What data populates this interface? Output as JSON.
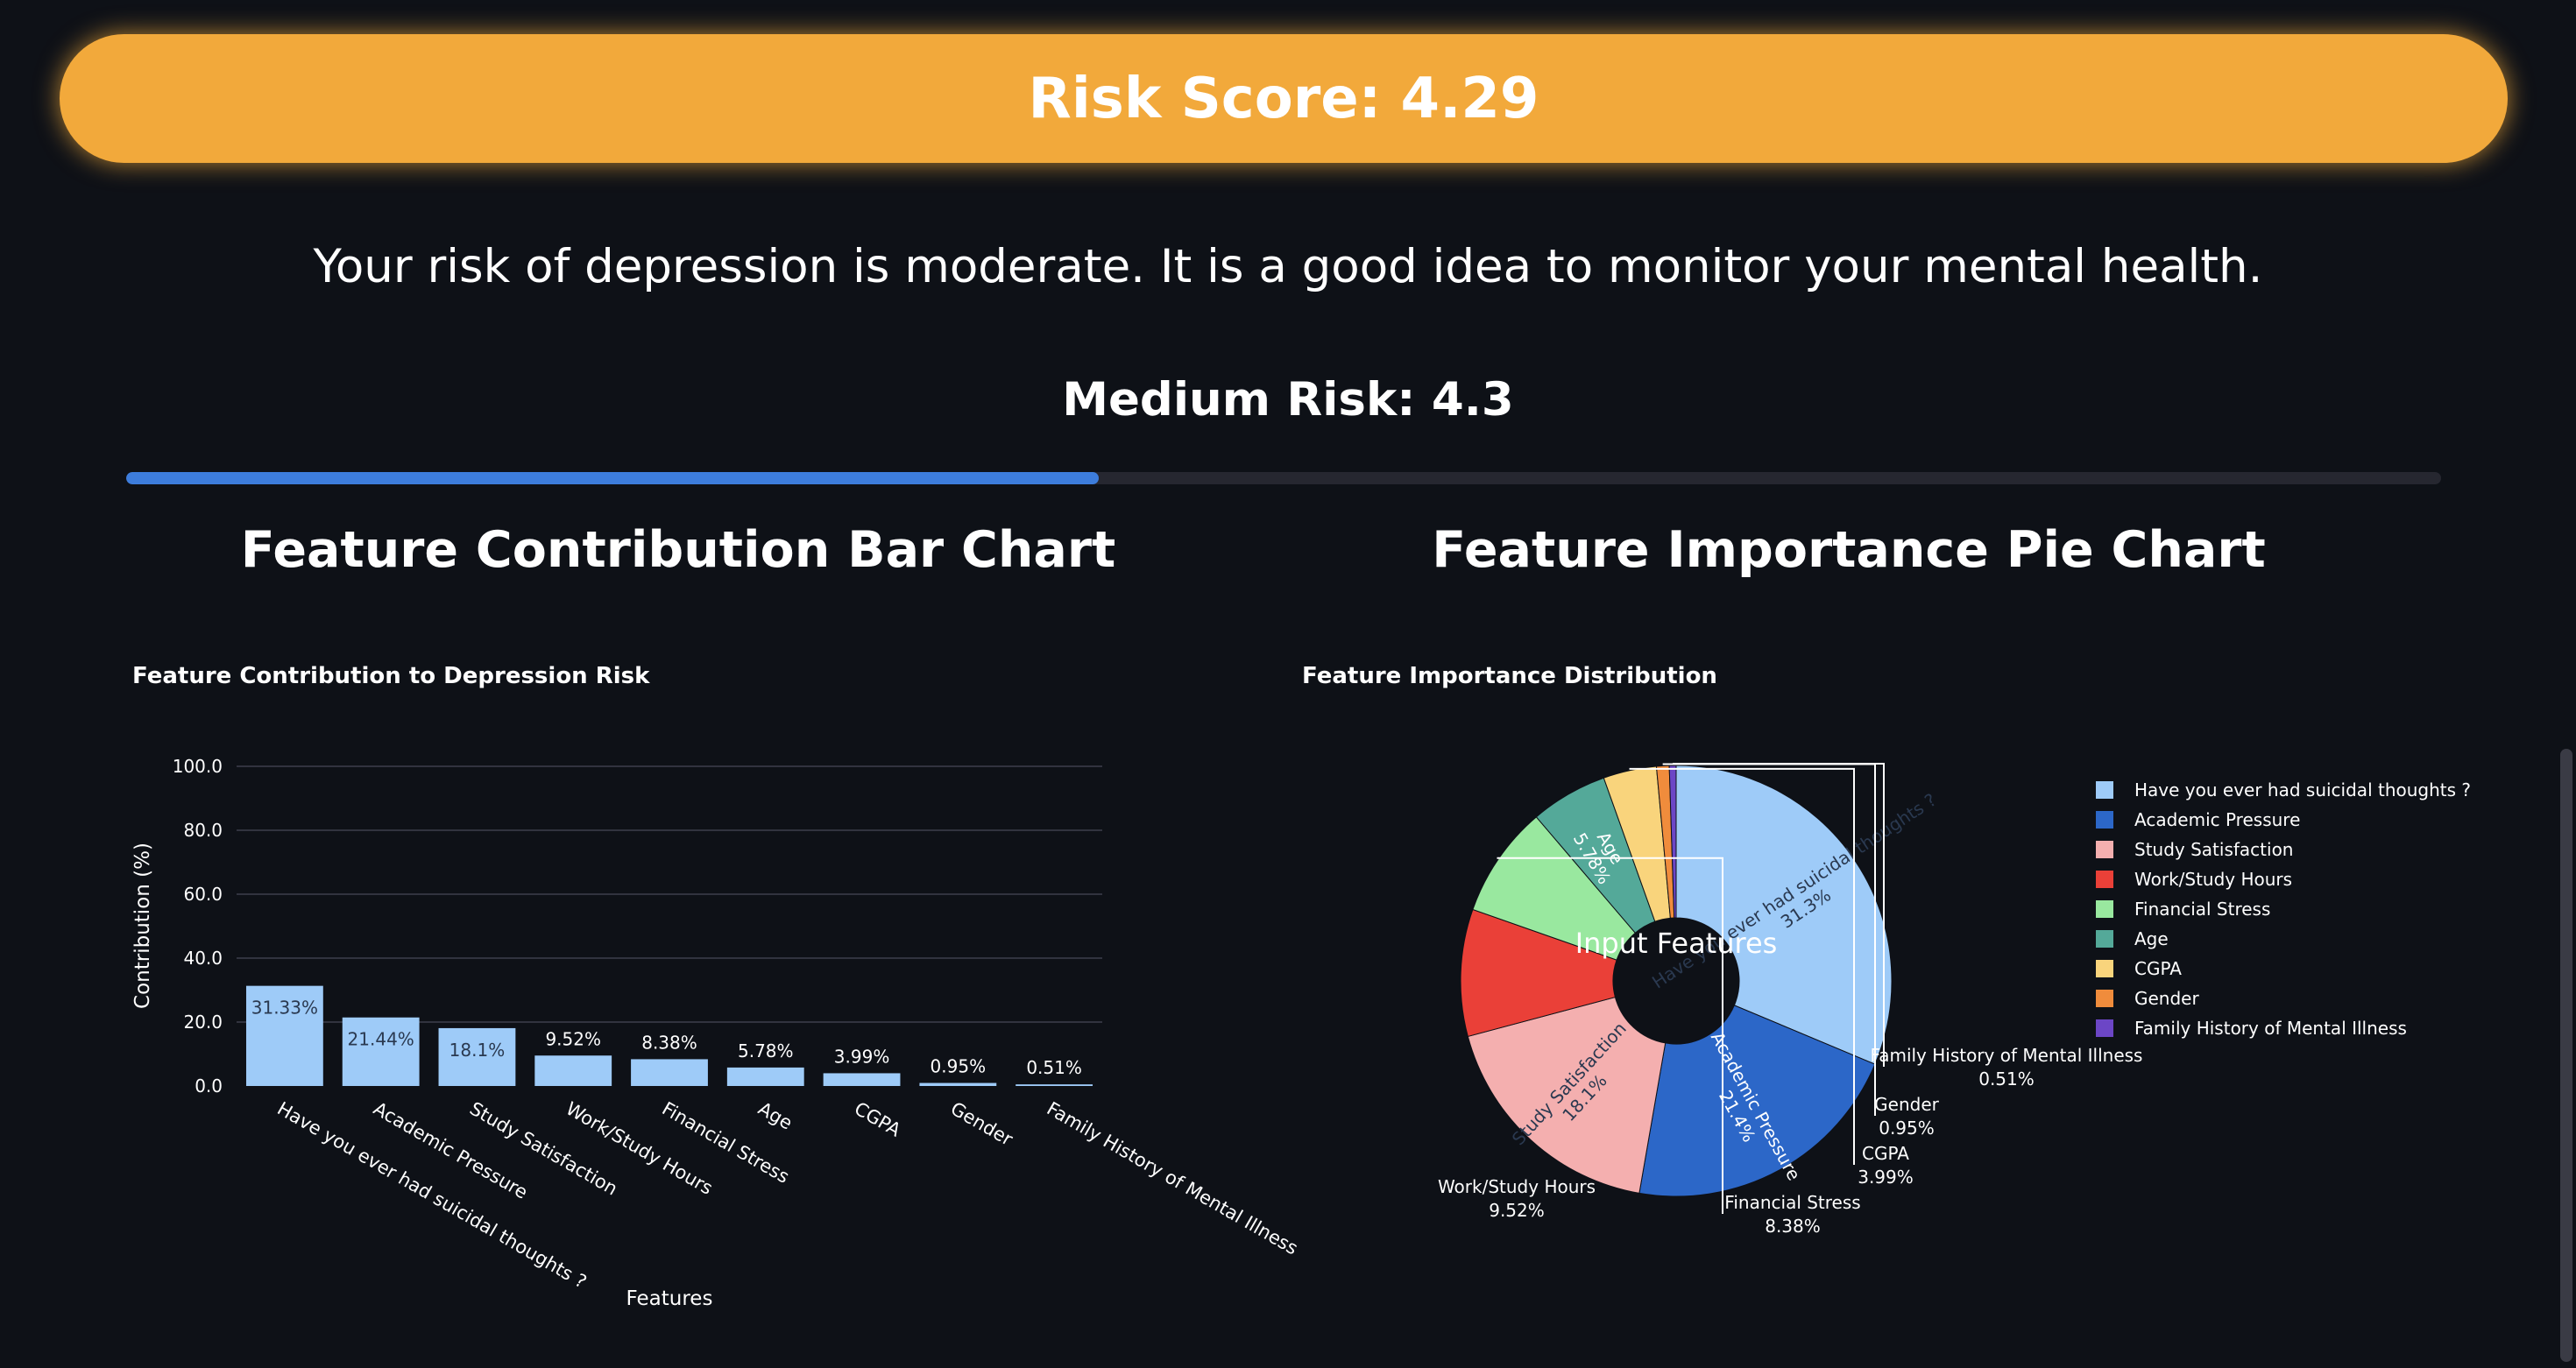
{
  "banner": {
    "text": "Risk Score: 4.29",
    "color": "#f2a93b"
  },
  "message": "Your risk of depression is moderate. It is a good idea to monitor your mental health.",
  "risk_label": "Medium Risk: 4.3",
  "progress": {
    "value": 0.42
  },
  "sections": {
    "bar_title": "Feature Contribution Bar Chart",
    "pie_title": "Feature Importance Pie Chart"
  },
  "chart_data": [
    {
      "type": "bar",
      "title": "Feature Contribution to Depression Risk",
      "xlabel": "Features",
      "ylabel": "Contribution (%)",
      "ylim": [
        0,
        100
      ],
      "yticks": [
        "0.0",
        "20.0",
        "40.0",
        "60.0",
        "80.0",
        "100.0"
      ],
      "categories": [
        "Have you ever had suicidal thoughts ?",
        "Academic Pressure",
        "Study Satisfaction",
        "Work/Study Hours",
        "Financial Stress",
        "Age",
        "CGPA",
        "Gender",
        "Family History of Mental Illness"
      ],
      "values": [
        31.33,
        21.44,
        18.1,
        9.52,
        8.38,
        5.78,
        3.99,
        0.95,
        0.51
      ],
      "labels": [
        "31.33%",
        "21.44%",
        "18.1%",
        "9.52%",
        "8.38%",
        "5.78%",
        "3.99%",
        "0.95%",
        "0.51%"
      ],
      "color": "#9ecbf8",
      "grid": true
    },
    {
      "type": "pie",
      "title": "Feature Importance Distribution",
      "center_label": "Input Features",
      "hole": true,
      "legend": "right",
      "slices": [
        {
          "name": "Have you ever had suicidal thoughts ?",
          "pct": 31.3,
          "label": "31.3%",
          "color": "#9ecbf8"
        },
        {
          "name": "Academic Pressure",
          "pct": 21.4,
          "label": "21.4%",
          "color": "#2c67c8"
        },
        {
          "name": "Study Satisfaction",
          "pct": 18.1,
          "label": "18.1%",
          "color": "#f4afaf"
        },
        {
          "name": "Work/Study Hours",
          "pct": 9.52,
          "label": "9.52%",
          "color": "#ea4038"
        },
        {
          "name": "Financial Stress",
          "pct": 8.38,
          "label": "8.38%",
          "color": "#99e89f"
        },
        {
          "name": "Age",
          "pct": 5.78,
          "label": "5.78%",
          "color": "#54a999"
        },
        {
          "name": "CGPA",
          "pct": 3.99,
          "label": "3.99%",
          "color": "#f9d47c"
        },
        {
          "name": "Gender",
          "pct": 0.95,
          "label": "0.95%",
          "color": "#f08c3c"
        },
        {
          "name": "Family History of Mental Illness",
          "pct": 0.51,
          "label": "0.51%",
          "color": "#6c46c6"
        }
      ]
    }
  ]
}
